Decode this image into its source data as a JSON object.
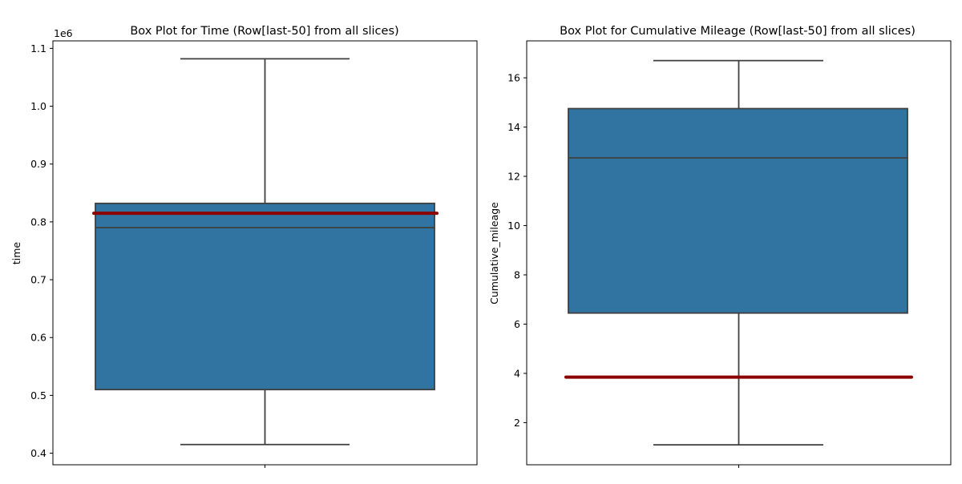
{
  "chart_data": [
    {
      "type": "box",
      "title": "Box Plot for Time (Row[last-50] from all slices)",
      "ylabel": "time",
      "xlabel": "",
      "offset_label": "1e6",
      "ylim": [
        0.38,
        1.113
      ],
      "yticks": [
        "0.4",
        "0.5",
        "0.6",
        "0.7",
        "0.8",
        "0.9",
        "1.0",
        "1.1"
      ],
      "ytick_values": [
        0.4,
        0.5,
        0.6,
        0.7,
        0.8,
        0.9,
        1.0,
        1.1
      ],
      "box": {
        "whisker_low": 0.415,
        "q1": 0.51,
        "median": 0.79,
        "q3": 0.832,
        "whisker_high": 1.082
      },
      "reference_line": 0.815,
      "box_color": "#3274a1",
      "reference_color": "#8b0000"
    },
    {
      "type": "box",
      "title": "Box Plot for Cumulative Mileage (Row[last-50] from all slices)",
      "ylabel": "Cumulative_mileage",
      "xlabel": "",
      "ylim": [
        0.29,
        17.5
      ],
      "yticks": [
        "2",
        "4",
        "6",
        "8",
        "10",
        "12",
        "14",
        "16"
      ],
      "ytick_values": [
        2,
        4,
        6,
        8,
        10,
        12,
        14,
        16
      ],
      "box": {
        "whisker_low": 1.1,
        "q1": 6.45,
        "median": 12.75,
        "q3": 14.75,
        "whisker_high": 16.7
      },
      "reference_line": 3.85,
      "box_color": "#3274a1",
      "reference_color": "#8b0000"
    }
  ]
}
